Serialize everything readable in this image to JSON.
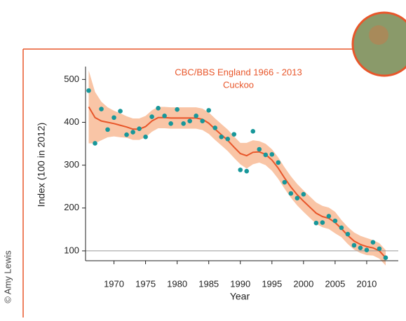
{
  "chart_data": {
    "type": "scatter",
    "title": "CBC/BBS England 1966 - 2013",
    "subtitle": "Cuckoo",
    "x_label": "Year",
    "y_label": "Index (100 in 2012)",
    "credit": "© Amy Lewis",
    "xlim": [
      1965.5,
      2015
    ],
    "ylim": [
      77,
      530
    ],
    "xticks": [
      1970,
      1975,
      1980,
      1985,
      1990,
      1995,
      2000,
      2005,
      2010
    ],
    "yticks": [
      100,
      200,
      300,
      400,
      500
    ],
    "reference_line": 100,
    "points": {
      "color": "#17979a",
      "x": [
        1966,
        1967,
        1968,
        1969,
        1970,
        1971,
        1972,
        1973,
        1974,
        1975,
        1976,
        1977,
        1978,
        1979,
        1980,
        1981,
        1982,
        1983,
        1984,
        1985,
        1986,
        1987,
        1988,
        1989,
        1990,
        1991,
        1992,
        1993,
        1994,
        1995,
        1996,
        1997,
        1998,
        1999,
        2000,
        2002,
        2003,
        2004,
        2005,
        2006,
        2007,
        2008,
        2009,
        2010,
        2011,
        2012,
        2013
      ],
      "values": [
        474,
        351,
        431,
        383,
        411,
        426,
        371,
        377,
        385,
        366,
        413,
        433,
        415,
        397,
        430,
        397,
        403,
        415,
        403,
        428,
        387,
        366,
        361,
        372,
        289,
        286,
        379,
        337,
        324,
        325,
        306,
        260,
        234,
        223,
        232,
        165,
        166,
        181,
        170,
        154,
        139,
        113,
        107,
        102,
        120,
        105,
        84
      ]
    },
    "trend": {
      "color": "#e8562a",
      "band_color": "#f9c5a6",
      "x": [
        1966,
        1967,
        1968,
        1969,
        1970,
        1971,
        1972,
        1973,
        1974,
        1975,
        1976,
        1977,
        1978,
        1979,
        1980,
        1981,
        1982,
        1983,
        1984,
        1985,
        1986,
        1987,
        1988,
        1989,
        1990,
        1991,
        1992,
        1993,
        1994,
        1995,
        1996,
        1997,
        1998,
        1999,
        2000,
        2001,
        2002,
        2003,
        2004,
        2005,
        2006,
        2007,
        2008,
        2009,
        2010,
        2011,
        2012,
        2013
      ],
      "values": [
        436,
        411,
        403,
        400,
        397,
        393,
        389,
        384,
        384,
        390,
        403,
        411,
        411,
        410,
        410,
        410,
        410,
        410,
        407,
        398,
        384,
        371,
        358,
        342,
        327,
        322,
        330,
        331,
        325,
        312,
        293,
        270,
        249,
        231,
        216,
        202,
        188,
        180,
        176,
        166,
        152,
        136,
        123,
        115,
        110,
        107,
        100,
        84
      ],
      "upper": [
        521,
        471,
        448,
        435,
        427,
        421,
        414,
        409,
        409,
        415,
        428,
        436,
        436,
        435,
        435,
        435,
        435,
        435,
        432,
        423,
        409,
        396,
        383,
        367,
        352,
        352,
        358,
        356,
        350,
        337,
        318,
        295,
        274,
        256,
        241,
        227,
        213,
        205,
        201,
        191,
        172,
        156,
        143,
        135,
        130,
        125,
        118,
        102
      ],
      "lower": [
        351,
        351,
        358,
        365,
        367,
        365,
        364,
        359,
        359,
        365,
        378,
        386,
        386,
        385,
        385,
        385,
        385,
        385,
        382,
        373,
        359,
        346,
        333,
        317,
        302,
        292,
        302,
        306,
        300,
        287,
        268,
        245,
        224,
        206,
        191,
        177,
        163,
        155,
        151,
        141,
        132,
        116,
        103,
        95,
        90,
        89,
        82,
        66
      ]
    }
  }
}
